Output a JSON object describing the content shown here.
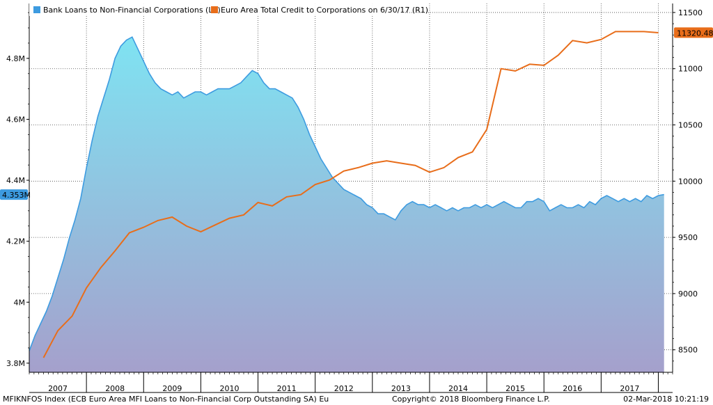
{
  "footer": {
    "ticker": "MFIKNFOS Index (ECB Euro Area MFI Loans to Non-Financial Corp Outstanding SA) Eu",
    "copyright": "Copyright© 2018 Bloomberg Finance L.P.",
    "timestamp": "02-Mar-2018 10:21:19"
  },
  "colors": {
    "area_line": "#3d9be0",
    "area_top": "#7fe3f2",
    "area_bottom": "#a5a0cc",
    "credit_line": "#e86d1a",
    "left_badge": "#3d9be0",
    "right_badge": "#e86d1a"
  },
  "chart_data": {
    "type": "area",
    "x_tick_labels": [
      "2007",
      "2008",
      "2009",
      "2010",
      "2011",
      "2012",
      "2013",
      "2014",
      "2015",
      "2016",
      "2017"
    ],
    "y_left": {
      "label": "L1",
      "range": [
        3.77,
        4.98
      ],
      "ticks": [
        3.8,
        4.0,
        4.2,
        4.4,
        4.6,
        4.8
      ],
      "tick_labels": [
        "3.8M",
        "4M",
        "4.2M",
        "4.4M",
        "4.6M",
        "4.8M"
      ],
      "last_value_label": "4.353M",
      "last_value": 4.353
    },
    "y_right": {
      "label": "R1",
      "range": [
        8300,
        11580
      ],
      "ticks": [
        8500,
        9000,
        9500,
        10000,
        10500,
        11000,
        11500
      ],
      "tick_labels": [
        "8500",
        "9000",
        "9500",
        "10000",
        "10500",
        "11000",
        "11500"
      ],
      "last_value_label": "11320.481",
      "last_value": 11320.481
    },
    "grid": true,
    "legend_position": "top-left",
    "series": [
      {
        "name": "Bank Loans to Non-Financial Corporations (L1)",
        "type": "area",
        "axis": "left",
        "x": [
          2006.5,
          2006.6,
          2006.7,
          2006.8,
          2006.9,
          2007.0,
          2007.1,
          2007.2,
          2007.3,
          2007.4,
          2007.5,
          2007.6,
          2007.7,
          2007.8,
          2007.9,
          2008.0,
          2008.1,
          2008.2,
          2008.3,
          2008.4,
          2008.5,
          2008.6,
          2008.7,
          2008.8,
          2008.9,
          2009.0,
          2009.1,
          2009.2,
          2009.3,
          2009.4,
          2009.5,
          2009.6,
          2009.7,
          2009.8,
          2009.9,
          2010.0,
          2010.1,
          2010.2,
          2010.3,
          2010.4,
          2010.5,
          2010.6,
          2010.7,
          2010.8,
          2010.9,
          2011.0,
          2011.1,
          2011.2,
          2011.3,
          2011.4,
          2011.5,
          2011.6,
          2011.7,
          2011.8,
          2011.9,
          2012.0,
          2012.1,
          2012.2,
          2012.3,
          2012.4,
          2012.5,
          2012.6,
          2012.7,
          2012.8,
          2012.9,
          2013.0,
          2013.1,
          2013.2,
          2013.3,
          2013.4,
          2013.5,
          2013.6,
          2013.7,
          2013.8,
          2013.9,
          2014.0,
          2014.1,
          2014.2,
          2014.3,
          2014.4,
          2014.5,
          2014.6,
          2014.7,
          2014.8,
          2014.9,
          2015.0,
          2015.1,
          2015.2,
          2015.3,
          2015.4,
          2015.5,
          2015.6,
          2015.7,
          2015.8,
          2015.9,
          2016.0,
          2016.1,
          2016.2,
          2016.3,
          2016.4,
          2016.5,
          2016.6,
          2016.7,
          2016.8,
          2016.9,
          2017.0,
          2017.1,
          2017.2,
          2017.3,
          2017.4,
          2017.5,
          2017.6
        ],
        "values": [
          3.84,
          3.89,
          3.93,
          3.97,
          4.02,
          4.08,
          4.14,
          4.21,
          4.27,
          4.34,
          4.44,
          4.53,
          4.61,
          4.67,
          4.73,
          4.8,
          4.84,
          4.86,
          4.87,
          4.83,
          4.79,
          4.75,
          4.72,
          4.7,
          4.69,
          4.68,
          4.69,
          4.67,
          4.68,
          4.69,
          4.69,
          4.68,
          4.69,
          4.7,
          4.7,
          4.7,
          4.71,
          4.72,
          4.74,
          4.76,
          4.75,
          4.72,
          4.7,
          4.7,
          4.69,
          4.68,
          4.67,
          4.64,
          4.6,
          4.55,
          4.51,
          4.47,
          4.44,
          4.41,
          4.39,
          4.37,
          4.36,
          4.35,
          4.34,
          4.32,
          4.31,
          4.29,
          4.29,
          4.28,
          4.27,
          4.3,
          4.32,
          4.33,
          4.32,
          4.32,
          4.31,
          4.32,
          4.31,
          4.3,
          4.31,
          4.3,
          4.31,
          4.31,
          4.32,
          4.31,
          4.32,
          4.31,
          4.32,
          4.33,
          4.32,
          4.31,
          4.31,
          4.33,
          4.33,
          4.34,
          4.33,
          4.3,
          4.31,
          4.32,
          4.31,
          4.31,
          4.32,
          4.31,
          4.33,
          4.32,
          4.34,
          4.35,
          4.34,
          4.33,
          4.34,
          4.33,
          4.34,
          4.33,
          4.35,
          4.34,
          4.35,
          4.353
        ]
      },
      {
        "name": "Euro Area Total Credit to Corporations on 6/30/17 (R1)",
        "type": "line",
        "axis": "right",
        "x": [
          2006.75,
          2007.0,
          2007.25,
          2007.5,
          2007.75,
          2008.0,
          2008.25,
          2008.5,
          2008.75,
          2009.0,
          2009.25,
          2009.5,
          2009.75,
          2010.0,
          2010.25,
          2010.5,
          2010.75,
          2011.0,
          2011.25,
          2011.5,
          2011.75,
          2012.0,
          2012.25,
          2012.5,
          2012.75,
          2013.0,
          2013.25,
          2013.5,
          2013.75,
          2014.0,
          2014.25,
          2014.5,
          2014.75,
          2015.0,
          2015.25,
          2015.5,
          2015.75,
          2016.0,
          2016.25,
          2016.5,
          2016.75,
          2017.0,
          2017.25,
          2017.5
        ],
        "values": [
          8430,
          8670,
          8800,
          9050,
          9230,
          9380,
          9540,
          9590,
          9650,
          9680,
          9600,
          9550,
          9610,
          9670,
          9700,
          9810,
          9780,
          9860,
          9880,
          9970,
          10010,
          10090,
          10120,
          10160,
          10180,
          10160,
          10140,
          10080,
          10120,
          10210,
          10260,
          10460,
          11000,
          10980,
          11040,
          11030,
          11120,
          11250,
          11230,
          11260,
          11330,
          11330,
          11330,
          11320
        ]
      }
    ]
  }
}
